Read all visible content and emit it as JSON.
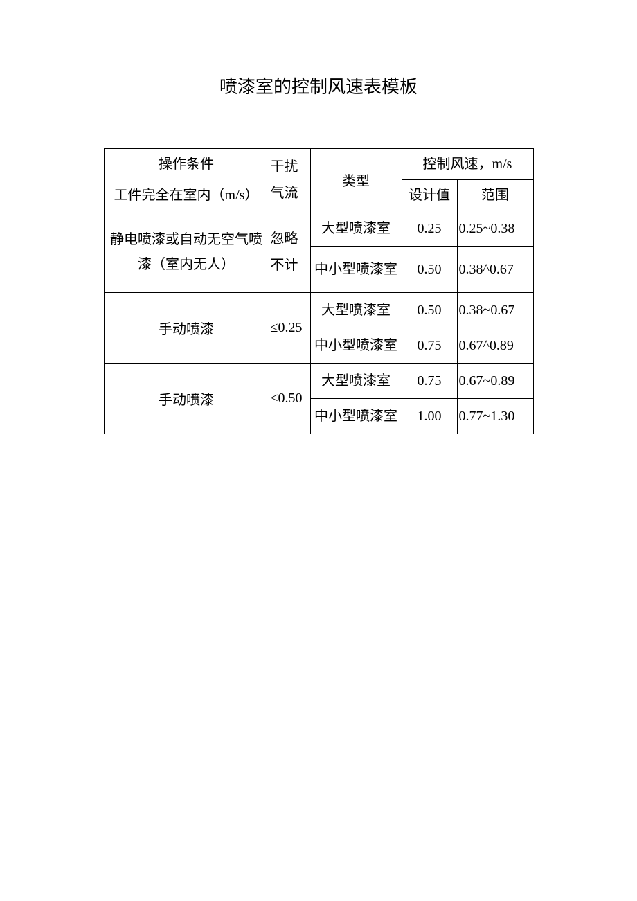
{
  "title": "喷漆室的控制风速表模板",
  "table": {
    "border_color": "#000000",
    "background_color": "#ffffff",
    "text_color": "#000000",
    "font_size_pt": 15,
    "title_font_size_pt": 20,
    "columns": {
      "col1_width": 238,
      "col2_width": 60,
      "col3_width": 132,
      "col4_width": 80,
      "col5_width": 110
    },
    "headers": {
      "col1_line1": "操作条件",
      "col1_line2": "工件完全在室内（m/s）",
      "col2": "干扰气流",
      "col3": "类型",
      "col45_group": "控制风速，m/s",
      "col4": "设计值",
      "col5": "范围"
    },
    "rows": [
      {
        "condition": "静电喷漆或自动无空气喷漆（室内无人）",
        "airflow": "忽略不计",
        "sub": [
          {
            "type": "大型喷漆室",
            "design": "0.25",
            "range": "0.25~0.38"
          },
          {
            "type": "中小型喷漆室",
            "design": "0.50",
            "range": "0.38^0.67"
          }
        ]
      },
      {
        "condition": "手动喷漆",
        "airflow": "≤0.25",
        "sub": [
          {
            "type": "大型喷漆室",
            "design": "0.50",
            "range": "0.38~0.67"
          },
          {
            "type": "中小型喷漆室",
            "design": "0.75",
            "range": "0.67^0.89"
          }
        ]
      },
      {
        "condition": "手动喷漆",
        "airflow": "≤0.50",
        "sub": [
          {
            "type": "大型喷漆室",
            "design": "0.75",
            "range": "0.67~0.89"
          },
          {
            "type": "中小型喷漆室",
            "design": "1.00",
            "range": "0.77~1.30"
          }
        ]
      }
    ]
  }
}
